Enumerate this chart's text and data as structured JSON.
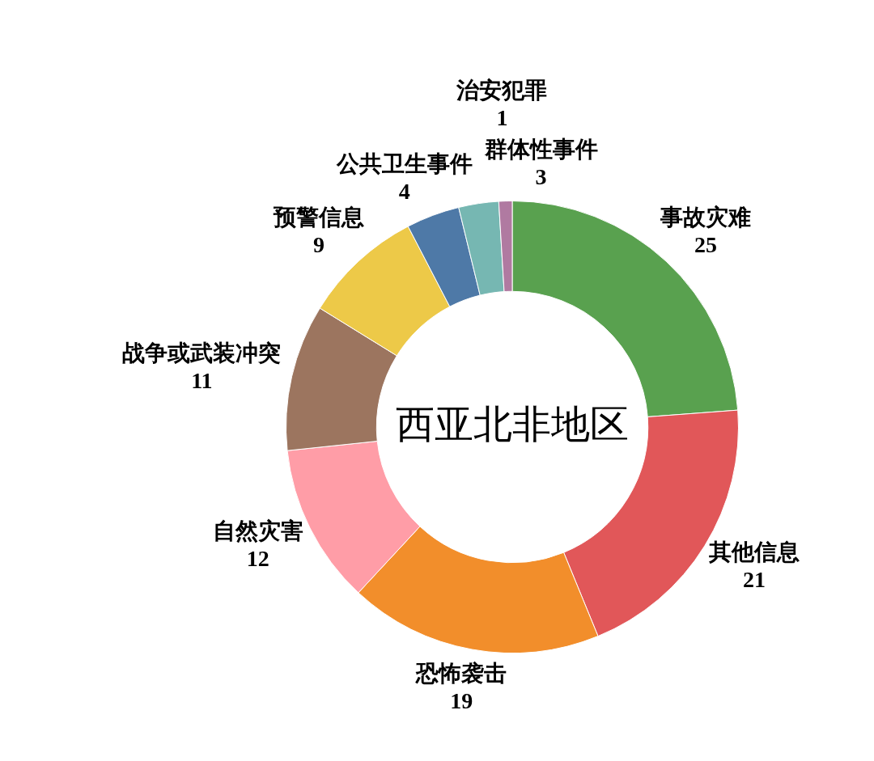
{
  "chart_data": {
    "type": "donut",
    "title": "西亚北非地区",
    "categories": [
      "事故灾难",
      "其他信息",
      "恐怖袭击",
      "自然灾害",
      "战争或武装冲突",
      "预警信息",
      "公共卫生事件",
      "群体性事件",
      "治安犯罪"
    ],
    "values": [
      25,
      21,
      19,
      12,
      11,
      9,
      4,
      3,
      1
    ],
    "colors": [
      "#59a14f",
      "#e15759",
      "#f28e2b",
      "#ff9da7",
      "#9c755f",
      "#edc948",
      "#4e79a7",
      "#76b7b2",
      "#b07aa1"
    ],
    "data_labels": true,
    "legend": false
  }
}
